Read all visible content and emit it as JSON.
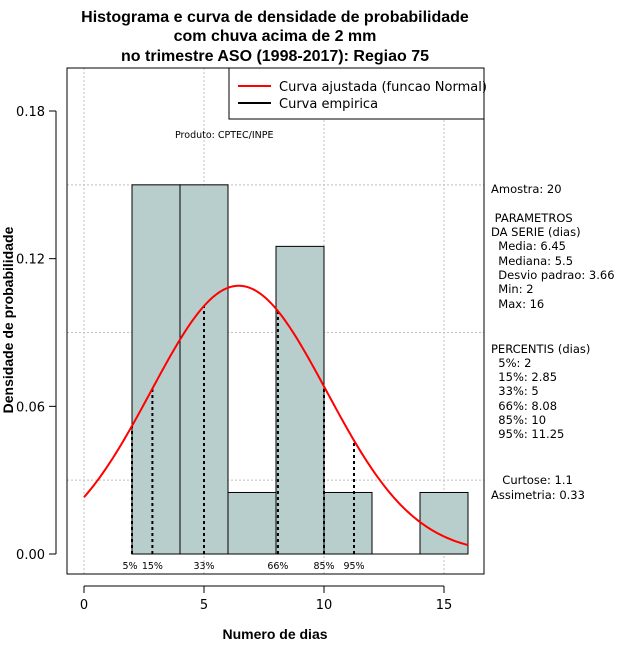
{
  "chart_data": {
    "type": "bar",
    "title_lines": [
      "Histograma e curva de densidade de probabilidade",
      "com chuva acima de 2 mm",
      "no trimestre ASO (1998-2017): Regiao 75"
    ],
    "xlabel": "Numero de dias",
    "ylabel": "Densidade de probabilidade",
    "xlim": [
      0,
      16
    ],
    "ylim": [
      0,
      0.18
    ],
    "x_ticks": [
      0,
      5,
      10,
      15
    ],
    "y_ticks": [
      0.0,
      0.06,
      0.12,
      0.18
    ],
    "y_tick_labels": [
      "0.00",
      "0.06",
      "0.12",
      "0.18"
    ],
    "hist_bins": [
      {
        "x0": 2,
        "x1": 4,
        "density": 0.15
      },
      {
        "x0": 4,
        "x1": 6,
        "density": 0.15
      },
      {
        "x0": 6,
        "x1": 8,
        "density": 0.025
      },
      {
        "x0": 8,
        "x1": 10,
        "density": 0.125
      },
      {
        "x0": 10,
        "x1": 12,
        "density": 0.025
      },
      {
        "x0": 12,
        "x1": 14,
        "density": 0.0
      },
      {
        "x0": 14,
        "x1": 16,
        "density": 0.025
      }
    ],
    "normal_fit": {
      "mean": 6.45,
      "sd": 3.66
    },
    "percentile_markers": [
      {
        "label": "5%",
        "x": 2
      },
      {
        "label": "15%",
        "x": 2.85
      },
      {
        "label": "33%",
        "x": 5
      },
      {
        "label": "66%",
        "x": 8.08
      },
      {
        "label": "85%",
        "x": 10
      },
      {
        "label": "95%",
        "x": 11.25
      }
    ],
    "legend": [
      {
        "label": "Curva ajustada (funcao Normal)",
        "color": "#ff0000"
      },
      {
        "label": "Curva empirica",
        "color": "#000000"
      }
    ],
    "produto": "Produto: CPTEC/INPE",
    "colors": {
      "bar_fill": "#b7cecd",
      "curve": "#ff0000",
      "grid": "#bfbfbf"
    }
  },
  "stats": {
    "amostra": "Amostra: 20",
    "parametros_header": " PARAMETROS",
    "parametros_sub": "DA SERIE (dias)",
    "parametros": [
      "  Media: 6.45",
      "  Mediana: 5.5",
      "  Desvio padrao: 3.66",
      "  Min: 2",
      "  Max: 16"
    ],
    "percentis_header": "PERCENTIS (dias)",
    "percentis": [
      "  5%: 2",
      "  15%: 2.85",
      "  33%: 5",
      "  66%: 8.08",
      "  85%: 10",
      "  95%: 11.25"
    ],
    "curtose": "  Curtose: 1.1",
    "assimetria": "Assimetria: 0.33"
  }
}
